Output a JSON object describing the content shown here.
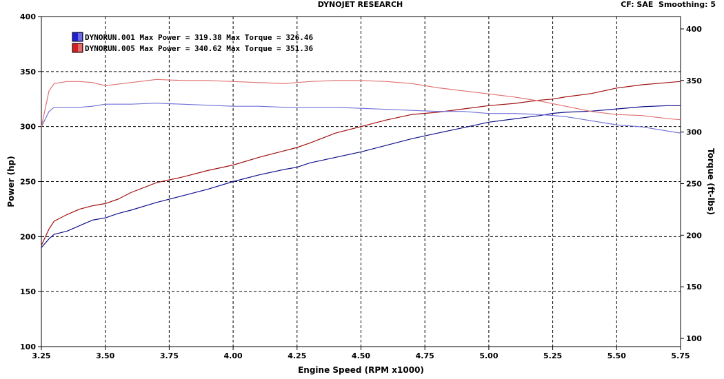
{
  "header": {
    "title": "DYNOJET RESEARCH",
    "settings": "CF: SAE  Smoothing: 5"
  },
  "chart_data": {
    "type": "line",
    "xlabel": "Engine Speed (RPM x1000)",
    "ylabel": "Power (hp)",
    "y2label": "Torque (ft-lbs)",
    "xlim": [
      3.25,
      5.75
    ],
    "ylim": [
      100,
      400
    ],
    "y2lim": [
      92,
      412
    ],
    "x_ticks": [
      "3.25",
      "3.50",
      "3.75",
      "4.00",
      "4.25",
      "4.50",
      "4.75",
      "5.00",
      "5.25",
      "5.50",
      "5.75"
    ],
    "y_ticks": [
      "100",
      "150",
      "200",
      "250",
      "300",
      "350",
      "400"
    ],
    "y2_ticks": [
      "100",
      "150",
      "200",
      "250",
      "300",
      "350",
      "400"
    ],
    "grid": true,
    "legend_position": "top-left",
    "legend": [
      {
        "label": "DYNORUN.001 Max Power = 319.38 Max Torque = 326.46",
        "color": "#2020d0"
      },
      {
        "label": "DYNORUN.005 Max Power = 340.62 Max Torque = 351.36",
        "color": "#d02020"
      }
    ],
    "series": [
      {
        "name": "DYNORUN.001",
        "quantity": "power",
        "axis": "left",
        "color": "#10108a",
        "x": [
          3.25,
          3.28,
          3.3,
          3.35,
          3.4,
          3.45,
          3.5,
          3.55,
          3.6,
          3.7,
          3.8,
          3.9,
          4.0,
          4.1,
          4.2,
          4.25,
          4.3,
          4.4,
          4.5,
          4.6,
          4.7,
          4.8,
          4.9,
          5.0,
          5.1,
          5.2,
          5.25,
          5.3,
          5.4,
          5.5,
          5.6,
          5.7,
          5.75
        ],
        "y": [
          190,
          198,
          202,
          205,
          210,
          215,
          217,
          221,
          224,
          231,
          237,
          243,
          250,
          256,
          261,
          263,
          267,
          272,
          277,
          283,
          289,
          294,
          299,
          304,
          307,
          310,
          312,
          313,
          314,
          316,
          318,
          319,
          319
        ]
      },
      {
        "name": "DYNORUN.005",
        "quantity": "power",
        "axis": "left",
        "color": "#a01010",
        "x": [
          3.25,
          3.28,
          3.3,
          3.35,
          3.4,
          3.45,
          3.5,
          3.55,
          3.6,
          3.7,
          3.8,
          3.9,
          4.0,
          4.1,
          4.2,
          4.25,
          4.3,
          4.4,
          4.5,
          4.6,
          4.7,
          4.8,
          4.9,
          5.0,
          5.1,
          5.2,
          5.25,
          5.3,
          5.4,
          5.5,
          5.6,
          5.7,
          5.75
        ],
        "y": [
          192,
          207,
          214,
          220,
          225,
          228,
          230,
          234,
          240,
          249,
          254,
          260,
          265,
          272,
          278,
          281,
          285,
          294,
          300,
          306,
          311,
          313,
          316,
          319,
          321,
          324,
          325,
          327,
          330,
          335,
          338,
          340,
          341
        ]
      },
      {
        "name": "DYNORUN.001",
        "quantity": "torque",
        "axis": "right",
        "color": "#7070d8",
        "x": [
          3.25,
          3.28,
          3.3,
          3.35,
          3.4,
          3.45,
          3.5,
          3.6,
          3.7,
          3.8,
          3.9,
          4.0,
          4.1,
          4.2,
          4.3,
          4.4,
          4.5,
          4.6,
          4.7,
          4.8,
          4.9,
          5.0,
          5.1,
          5.2,
          5.3,
          5.4,
          5.5,
          5.6,
          5.7,
          5.75
        ],
        "y": [
          305,
          320,
          324,
          324,
          324,
          325,
          327,
          327,
          328,
          327,
          326,
          325,
          325,
          324,
          324,
          324,
          323,
          322,
          321,
          320,
          320,
          318,
          318,
          317,
          315,
          311,
          307,
          305,
          301,
          299
        ]
      },
      {
        "name": "DYNORUN.005",
        "quantity": "torque",
        "axis": "right",
        "color": "#e07070",
        "x": [
          3.25,
          3.28,
          3.3,
          3.35,
          3.4,
          3.45,
          3.5,
          3.6,
          3.7,
          3.8,
          3.9,
          4.0,
          4.1,
          4.2,
          4.3,
          4.4,
          4.5,
          4.6,
          4.7,
          4.8,
          4.9,
          5.0,
          5.1,
          5.2,
          5.3,
          5.4,
          5.5,
          5.6,
          5.7,
          5.75
        ],
        "y": [
          305,
          340,
          347,
          349,
          349,
          348,
          345,
          348,
          351,
          350,
          350,
          349,
          348,
          347,
          349,
          350,
          350,
          349,
          347,
          343,
          340,
          337,
          334,
          330,
          325,
          320,
          317,
          316,
          313,
          312
        ]
      }
    ]
  }
}
